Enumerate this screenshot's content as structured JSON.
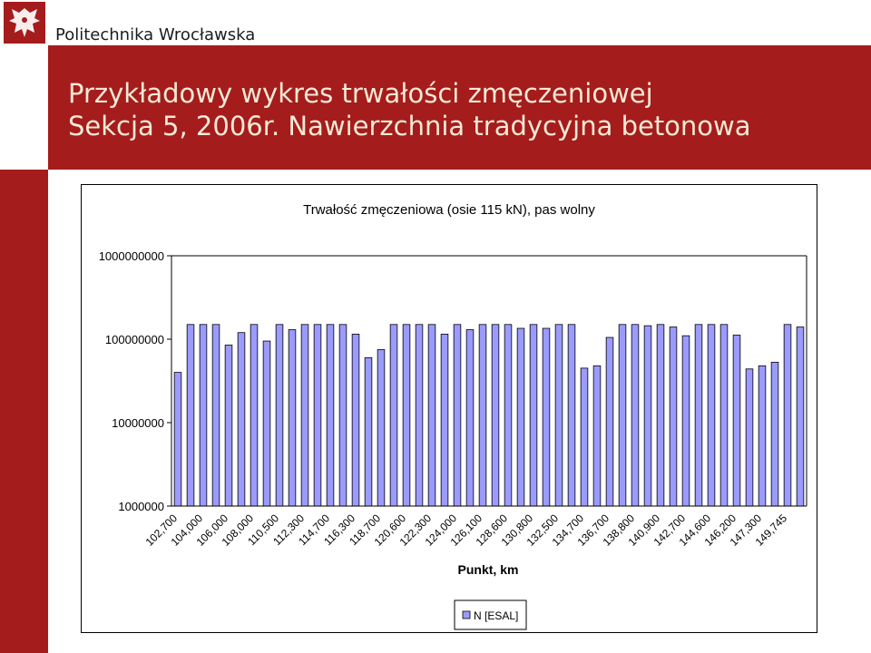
{
  "header": {
    "university": "Politechnika Wrocławska",
    "title_line1": "Przykładowy wykres trwałości zmęczeniowej",
    "title_line2": "Sekcja 5, 2006r. Nawierzchnia tradycyjna betonowa"
  },
  "colors": {
    "brand": "#a51c1c",
    "title_text": "#f3e9d6",
    "bar_fill": "#9b9bff"
  },
  "chart_data": {
    "type": "bar",
    "title": "Trwałość zmęczeniowa (osie 115 kN), pas wolny",
    "xlabel": "Punkt, km",
    "ylabel": "",
    "yscale": "log",
    "ylim": [
      1000000,
      1000000000
    ],
    "yticks": [
      "1000000000",
      "100000000",
      "10000000",
      "1000000"
    ],
    "grid": false,
    "legend": "bottom",
    "x_tick_labels": [
      "102,700",
      "104,000",
      "106,000",
      "108,000",
      "110,500",
      "112,300",
      "114,700",
      "116,300",
      "118,700",
      "120,600",
      "122,300",
      "124,000",
      "126,100",
      "128,600",
      "130,800",
      "132,500",
      "134,700",
      "136,700",
      "138,800",
      "140,900",
      "142,700",
      "144,600",
      "146,200",
      "147,300",
      "149,745"
    ],
    "series": [
      {
        "name": "N [ESAL]",
        "values": [
          40000000,
          150000000,
          150000000,
          150000000,
          85000000,
          120000000,
          150000000,
          95000000,
          150000000,
          130000000,
          150000000,
          150000000,
          150000000,
          150000000,
          115000000,
          60000000,
          75000000,
          150000000,
          150000000,
          150000000,
          150000000,
          115000000,
          150000000,
          130000000,
          150000000,
          150000000,
          150000000,
          135000000,
          150000000,
          135000000,
          150000000,
          150000000,
          45000000,
          48000000,
          105000000,
          150000000,
          150000000,
          145000000,
          150000000,
          140000000,
          110000000,
          150000000,
          150000000,
          150000000,
          112000000,
          44000000,
          48000000,
          53000000,
          150000000,
          140000000
        ]
      }
    ]
  }
}
